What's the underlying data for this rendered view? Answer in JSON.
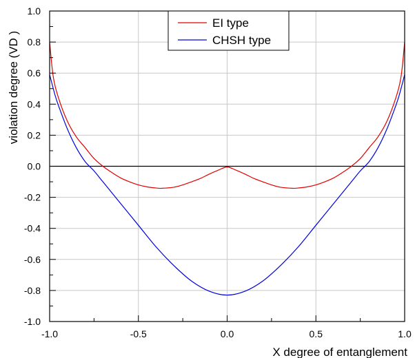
{
  "chart_data": {
    "type": "line",
    "xlabel": "X degree of entanglement",
    "ylabel": "violation degree (VD )",
    "xlim": [
      -1.0,
      1.0
    ],
    "ylim": [
      -1.0,
      1.0
    ],
    "grid": true,
    "legend_position": "top-center",
    "x_ticks": [
      "-1.0",
      "-0.5",
      "0.0",
      "0.5",
      "1.0"
    ],
    "y_ticks": [
      "-1.0",
      "-0.8",
      "-0.6",
      "-0.4",
      "-0.2",
      "0.0",
      "0.2",
      "0.4",
      "0.6",
      "0.8",
      "1.0"
    ],
    "series": [
      {
        "name": "EI type",
        "color": "#e00000",
        "x": [
          -1.0,
          -0.98,
          -0.95,
          -0.9,
          -0.85,
          -0.8,
          -0.75,
          -0.7,
          -0.65,
          -0.6,
          -0.55,
          -0.5,
          -0.45,
          -0.4,
          -0.37,
          -0.3,
          -0.25,
          -0.2,
          -0.15,
          -0.1,
          -0.05,
          0.0,
          0.05,
          0.1,
          0.15,
          0.2,
          0.25,
          0.3,
          0.37,
          0.4,
          0.45,
          0.5,
          0.55,
          0.6,
          0.65,
          0.7,
          0.75,
          0.8,
          0.85,
          0.9,
          0.95,
          0.98,
          1.0
        ],
        "y": [
          0.8,
          0.58,
          0.44,
          0.29,
          0.19,
          0.12,
          0.05,
          0.0,
          -0.04,
          -0.075,
          -0.1,
          -0.12,
          -0.133,
          -0.14,
          -0.142,
          -0.135,
          -0.12,
          -0.1,
          -0.078,
          -0.05,
          -0.025,
          -0.005,
          -0.025,
          -0.05,
          -0.078,
          -0.1,
          -0.12,
          -0.135,
          -0.142,
          -0.14,
          -0.133,
          -0.12,
          -0.1,
          -0.075,
          -0.04,
          0.0,
          0.05,
          0.12,
          0.19,
          0.29,
          0.44,
          0.58,
          0.8
        ]
      },
      {
        "name": "CHSH type",
        "color": "#0000e0",
        "x": [
          -1.0,
          -0.97,
          -0.95,
          -0.9,
          -0.85,
          -0.8,
          -0.75,
          -0.7,
          -0.6,
          -0.5,
          -0.4,
          -0.3,
          -0.2,
          -0.1,
          0.0,
          0.1,
          0.2,
          0.3,
          0.4,
          0.5,
          0.6,
          0.7,
          0.75,
          0.8,
          0.85,
          0.9,
          0.95,
          0.97,
          1.0
        ],
        "y": [
          0.59,
          0.46,
          0.39,
          0.24,
          0.12,
          0.03,
          -0.03,
          -0.1,
          -0.24,
          -0.38,
          -0.52,
          -0.64,
          -0.74,
          -0.805,
          -0.83,
          -0.805,
          -0.74,
          -0.64,
          -0.52,
          -0.38,
          -0.24,
          -0.1,
          -0.03,
          0.03,
          0.12,
          0.24,
          0.39,
          0.46,
          0.59
        ]
      }
    ],
    "reference_line": {
      "y": 0.0,
      "color": "#000000"
    }
  }
}
